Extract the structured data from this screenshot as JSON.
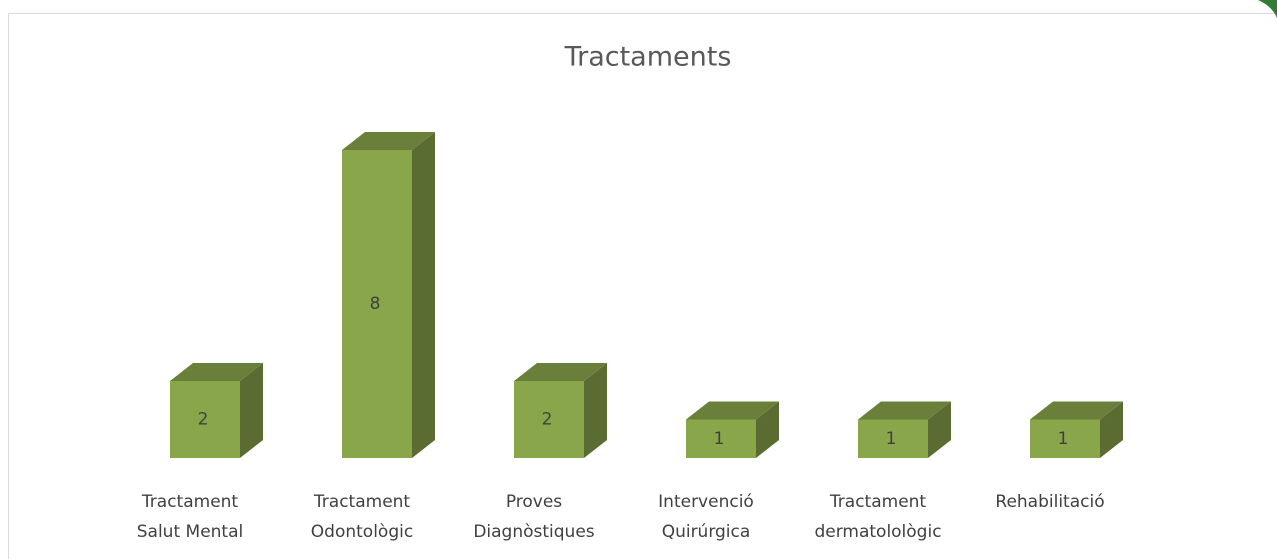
{
  "chart_data": {
    "type": "bar3d",
    "title": "Tractaments",
    "categories": [
      "Tractament\nSalut Mental",
      "Tractament\nOdontològic",
      "Proves\nDiagnòstiques",
      "Intervenció\nQuirúrgica",
      "Tractament\ndermatolològic",
      "Rehabilitació"
    ],
    "values": [
      2,
      8,
      2,
      1,
      1,
      1
    ],
    "color": "#8aa64b",
    "data_labels": true
  }
}
